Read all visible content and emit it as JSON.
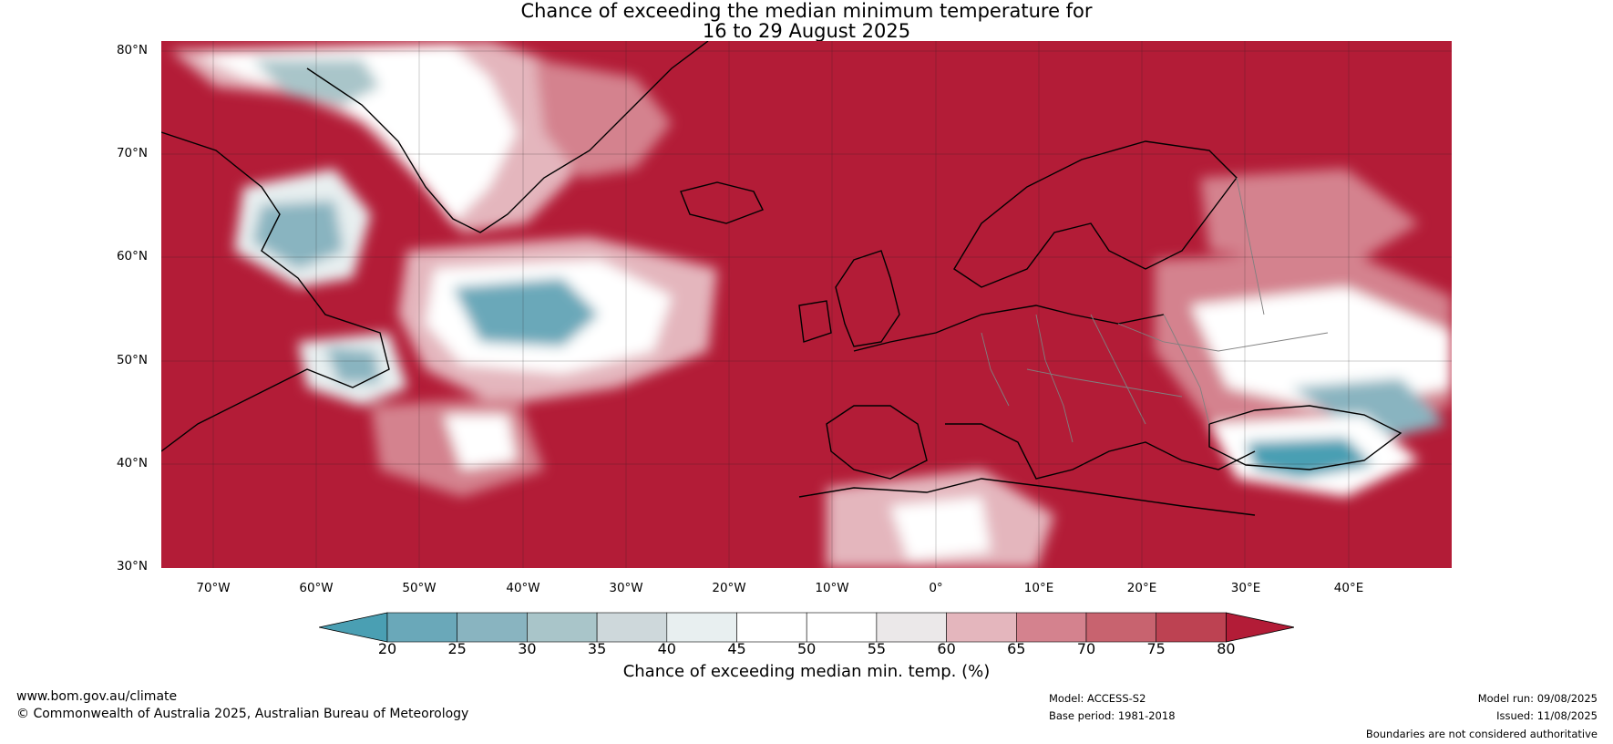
{
  "title": {
    "line1": "Chance of exceeding the median minimum temperature for",
    "line2": "16 to 29 August 2025"
  },
  "map": {
    "region": "North Atlantic and Europe",
    "lon_range": [
      -75,
      50
    ],
    "lat_range": [
      30,
      81
    ],
    "lat_ticks": [
      "80°N",
      "70°N",
      "60°N",
      "50°N",
      "40°N",
      "30°N"
    ],
    "lon_ticks": [
      "70°W",
      "60°W",
      "50°W",
      "40°W",
      "30°W",
      "20°W",
      "10°W",
      "0°",
      "10°E",
      "20°E",
      "30°E",
      "40°E"
    ],
    "dominant_color": "#b31c37",
    "coastline_color": "#000000",
    "border_color": "#808080"
  },
  "colorbar": {
    "labels": [
      "20",
      "25",
      "30",
      "35",
      "40",
      "45",
      "50",
      "55",
      "60",
      "65",
      "70",
      "75",
      "80"
    ],
    "colors": [
      "#4a9fb3",
      "#6aa8b9",
      "#89b4c0",
      "#a9c5c9",
      "#ced8db",
      "#e8eff0",
      "#ffffff",
      "#ffffff",
      "#ebe8e9",
      "#e4b6bd",
      "#d4828e",
      "#c8636f",
      "#bd4252",
      "#b31c37"
    ],
    "title": "Chance of exceeding median min. temp. (%)"
  },
  "footer": {
    "website": "www.bom.gov.au/climate",
    "copyright": "© Commonwealth of Australia 2025, Australian Bureau of Meteorology",
    "model": "Model: ACCESS-S2",
    "base_period": "Base period: 1981-2018",
    "model_run": "Model run: 09/08/2025",
    "issued": "Issued: 11/08/2025",
    "disclaimer": "Boundaries are not considered authoritative"
  }
}
